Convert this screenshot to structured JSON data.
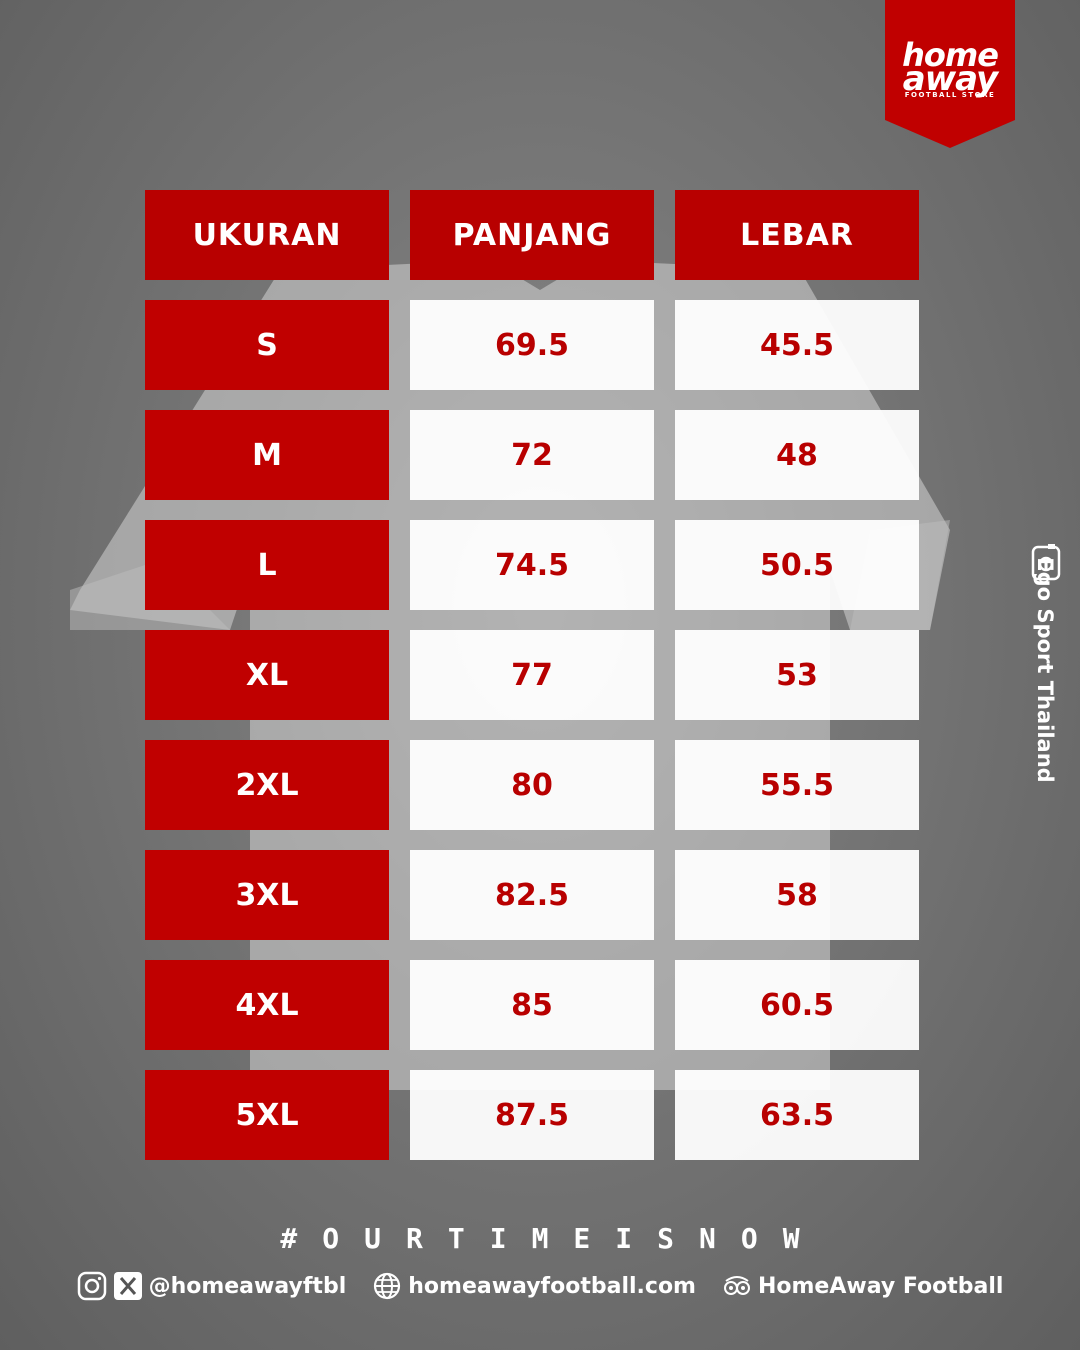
{
  "brand": {
    "line1": "home",
    "line2": "away",
    "tagline": "FOOTBALL STORE",
    "color": "#c00000"
  },
  "table": {
    "headers": [
      "UKURAN",
      "PANJANG",
      "LEBAR"
    ],
    "rows": [
      {
        "size": "S",
        "panjang": "69.5",
        "lebar": "45.5"
      },
      {
        "size": "M",
        "panjang": "72",
        "lebar": "48"
      },
      {
        "size": "L",
        "panjang": "74.5",
        "lebar": "50.5"
      },
      {
        "size": "XL",
        "panjang": "77",
        "lebar": "53"
      },
      {
        "size": "2XL",
        "panjang": "80",
        "lebar": "55.5"
      },
      {
        "size": "3XL",
        "panjang": "82.5",
        "lebar": "58"
      },
      {
        "size": "4XL",
        "panjang": "85",
        "lebar": "60.5"
      },
      {
        "size": "5XL",
        "panjang": "87.5",
        "lebar": "63.5"
      }
    ]
  },
  "credit": {
    "icon": "camera-icon",
    "text": "Ego Sport Thailand"
  },
  "hashtag": "#OURTIMEISNOW",
  "footer": {
    "social_icons": [
      "instagram-icon",
      "x-icon"
    ],
    "handle": "@homeawayftbl",
    "web_icon": "globe-icon",
    "website": "homeawayfootball.com",
    "tripadvisor_icon": "owl-icon",
    "store_name": "HomeAway Football"
  }
}
